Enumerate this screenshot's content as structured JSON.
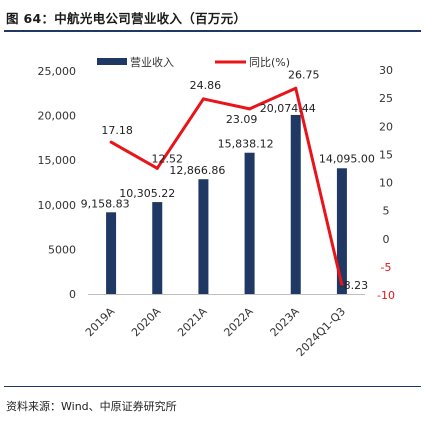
{
  "header": {
    "title": "图 64：中航光电公司营业收入（百万元）"
  },
  "footer": {
    "source": "资料来源：Wind、中原证券研究所"
  },
  "colors": {
    "bar": "#1f3864",
    "line": "#e8141a",
    "rule": "#1f3864",
    "negative_tick": "#e8141a"
  },
  "chart_data": {
    "type": "bar",
    "categories": [
      "2019A",
      "2020A",
      "2021A",
      "2022A",
      "2023A",
      "2024Q1-Q3"
    ],
    "series": [
      {
        "name": "营业收入",
        "type": "bar",
        "axis": "left",
        "values": [
          9158.83,
          10305.22,
          12866.86,
          15838.12,
          20074.44,
          14095.0
        ],
        "labels": [
          "9,158.83",
          "10,305.22",
          "12,866.86",
          "15,838.12",
          "20,074.44",
          "14,095.00"
        ]
      },
      {
        "name": "同比(%)",
        "type": "line",
        "axis": "right",
        "values": [
          17.18,
          12.52,
          24.86,
          23.09,
          26.75,
          -8.23
        ],
        "labels": [
          "17.18",
          "12.52",
          "24.86",
          "23.09",
          "26.75",
          "-8.23"
        ]
      }
    ],
    "y_left": {
      "ylim": [
        0,
        25000
      ],
      "ticks": [
        "0",
        "5000",
        "10,000",
        "15,000",
        "20,000",
        "25,000"
      ],
      "tick_values": [
        0,
        5000,
        10000,
        15000,
        20000,
        25000
      ]
    },
    "y_right": {
      "ylim": [
        -10,
        30
      ],
      "ticks": [
        "-10",
        "-5",
        "0",
        "5",
        "10",
        "15",
        "20",
        "25",
        "30"
      ],
      "tick_values": [
        -10,
        -5,
        0,
        5,
        10,
        15,
        20,
        25,
        30
      ]
    },
    "legend": {
      "placement": "top",
      "items": [
        "营业收入",
        "同比(%)"
      ]
    },
    "grid": false
  }
}
